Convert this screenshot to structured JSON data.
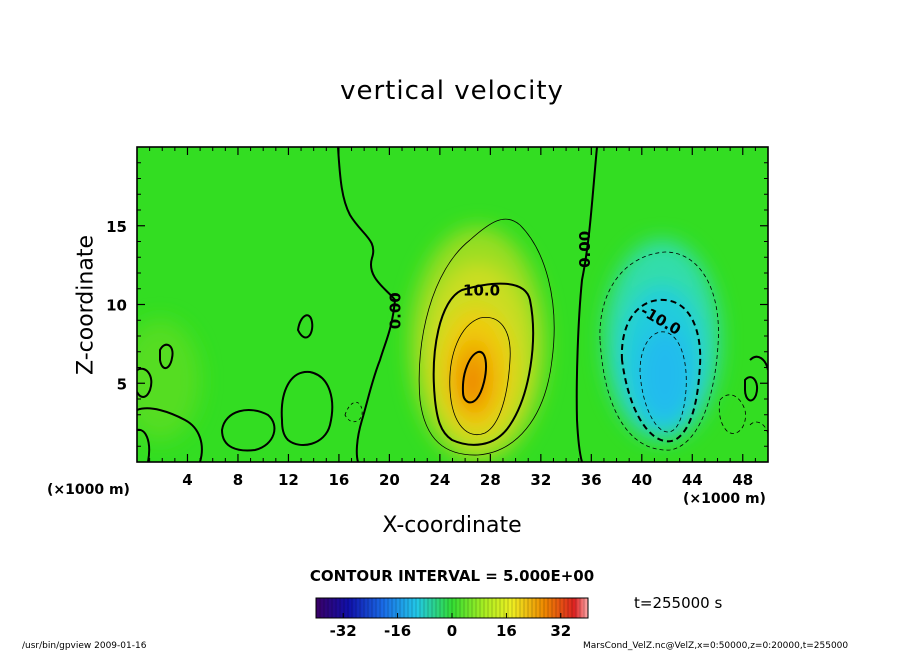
{
  "chart_data": {
    "type": "heatmap",
    "title": "vertical velocity",
    "xlabel": "X-coordinate",
    "ylabel": "Z-coordinate",
    "x_multiplier": "(×1000 m)",
    "y_multiplier": "(×1000 m)",
    "xlim": [
      0,
      50
    ],
    "ylim": [
      0,
      20
    ],
    "xticks": [
      4,
      8,
      12,
      16,
      20,
      24,
      28,
      32,
      36,
      40,
      44,
      48
    ],
    "yticks": [
      5,
      10,
      15
    ],
    "contour_labels": [
      {
        "text": "10.0",
        "x": 27.3,
        "z": 10.9
      },
      {
        "text": "0.00",
        "x": 20.5,
        "z": 9.6
      },
      {
        "text": "0.00",
        "x": 35.5,
        "z": 13.5
      },
      {
        "text": "-10.0",
        "x": 41.5,
        "z": 9.0
      }
    ],
    "features": [
      {
        "name": "updraft",
        "x_center": 26.5,
        "z_center": 5.5,
        "peak": 30
      },
      {
        "name": "downdraft",
        "x_center": 42.3,
        "z_center": 5.0,
        "peak": -20
      }
    ],
    "colorbar": {
      "min": -40,
      "max": 40,
      "ticks": [
        -32,
        -16,
        0,
        16,
        32
      ]
    },
    "contour_interval": "CONTOUR INTERVAL = 5.000E+00"
  },
  "time_label": "t=255000 s",
  "footer_left": "/usr/bin/gpview   2009-01-16",
  "footer_right": "MarsCond_VelZ.nc@VelZ,x=0:50000,z=0:20000,t=255000",
  "colors": {
    "background_field": "#33dd22",
    "updraft_core": "#ee8800",
    "downdraft_core": "#22bbee"
  }
}
